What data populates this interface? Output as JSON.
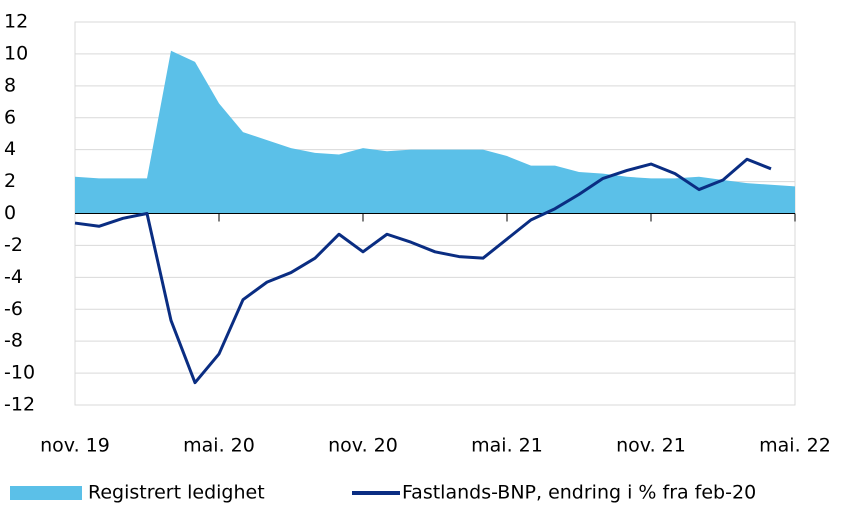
{
  "chart_data": {
    "type": "area_line",
    "categories": [
      "nov. 19",
      null,
      null,
      null,
      null,
      null,
      "mai. 20",
      null,
      null,
      null,
      null,
      null,
      "nov. 20",
      null,
      null,
      null,
      null,
      null,
      "mai. 21",
      null,
      null,
      null,
      null,
      null,
      "nov. 21",
      null,
      null,
      null,
      null,
      null,
      "mai. 22"
    ],
    "series": [
      {
        "name": "Registrert ledighet",
        "type": "area",
        "color": "#5bc0e8",
        "values": [
          2.3,
          2.2,
          2.2,
          2.2,
          10.2,
          9.5,
          6.9,
          5.1,
          4.6,
          4.1,
          3.8,
          3.7,
          4.1,
          3.9,
          4.0,
          4.0,
          4.0,
          4.0,
          3.6,
          3.0,
          3.0,
          2.6,
          2.5,
          2.3,
          2.2,
          2.2,
          2.3,
          2.1,
          1.9,
          1.8,
          1.7
        ]
      },
      {
        "name": "Fastlands-BNP, endring i % fra feb-20",
        "type": "line",
        "color": "#0a2d82",
        "values": [
          -0.6,
          -0.8,
          -0.3,
          0,
          -6.7,
          -10.6,
          -8.8,
          -5.4,
          -4.3,
          -3.7,
          -2.8,
          -1.3,
          -2.4,
          -1.3,
          -1.8,
          -2.4,
          -2.7,
          -2.8,
          -1.6,
          -0.4,
          0.3,
          1.2,
          2.2,
          2.7,
          3.1,
          2.5,
          1.5,
          2.1,
          3.4,
          2.8,
          null
        ]
      }
    ],
    "ylim": [
      -12,
      12
    ],
    "yticks": [
      -12,
      -10,
      -8,
      -6,
      -4,
      -2,
      0,
      2,
      4,
      6,
      8,
      10,
      12
    ],
    "grid": true
  }
}
